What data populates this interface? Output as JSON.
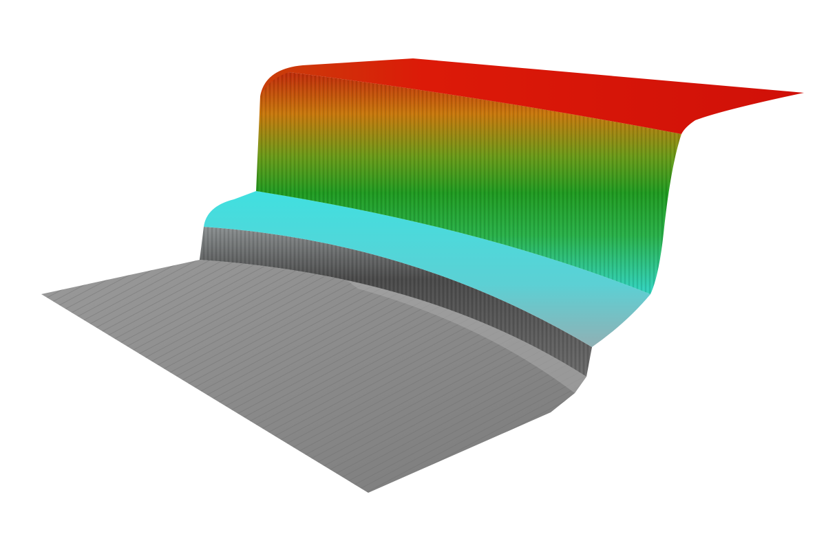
{
  "surface": {
    "description_colors": {
      "top_plateau": "#d81a08",
      "upper_wall_top": "#c8700a",
      "upper_wall_mid": "#2fa020",
      "terrace": "#3ad8d8",
      "lower_wall": "#5a5a5a",
      "floor": "#8e8e8e"
    }
  }
}
